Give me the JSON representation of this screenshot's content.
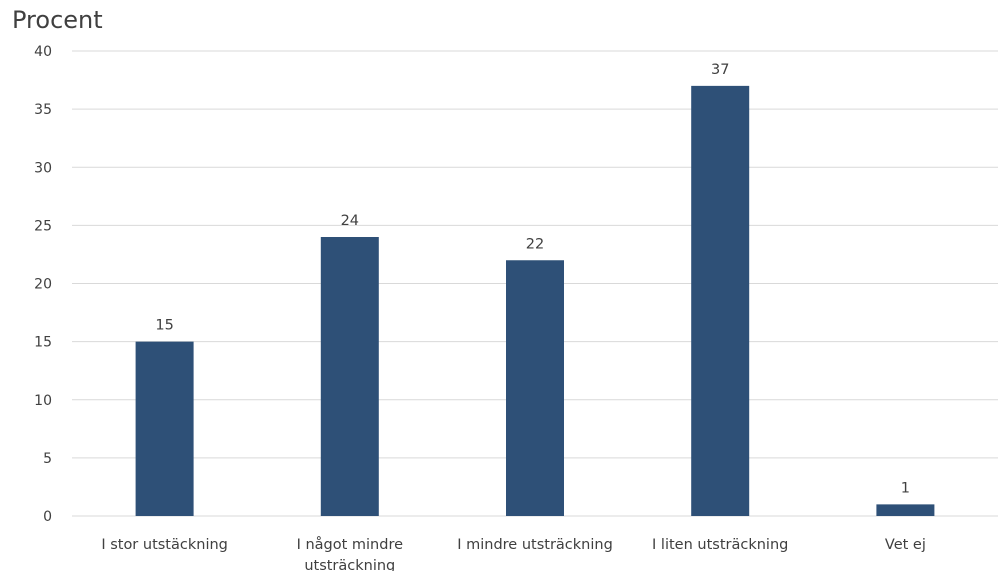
{
  "chart_data": {
    "type": "bar",
    "ylabel": "Procent",
    "categories": [
      [
        "I stor utstäckning"
      ],
      [
        "I något mindre",
        "utsträckning"
      ],
      [
        "I mindre utsträckning"
      ],
      [
        "I liten utsträckning"
      ],
      [
        "Vet ej"
      ]
    ],
    "values": [
      15,
      24,
      22,
      37,
      1
    ],
    "data_labels": [
      "15",
      "24",
      "22",
      "37",
      "1"
    ],
    "y_ticks": [
      "0",
      "5",
      "10",
      "15",
      "20",
      "25",
      "30",
      "35",
      "40"
    ],
    "ylim": [
      0,
      40
    ],
    "grid": true,
    "bar_color": "#2E5077",
    "grid_color": "#D9D9D9"
  }
}
